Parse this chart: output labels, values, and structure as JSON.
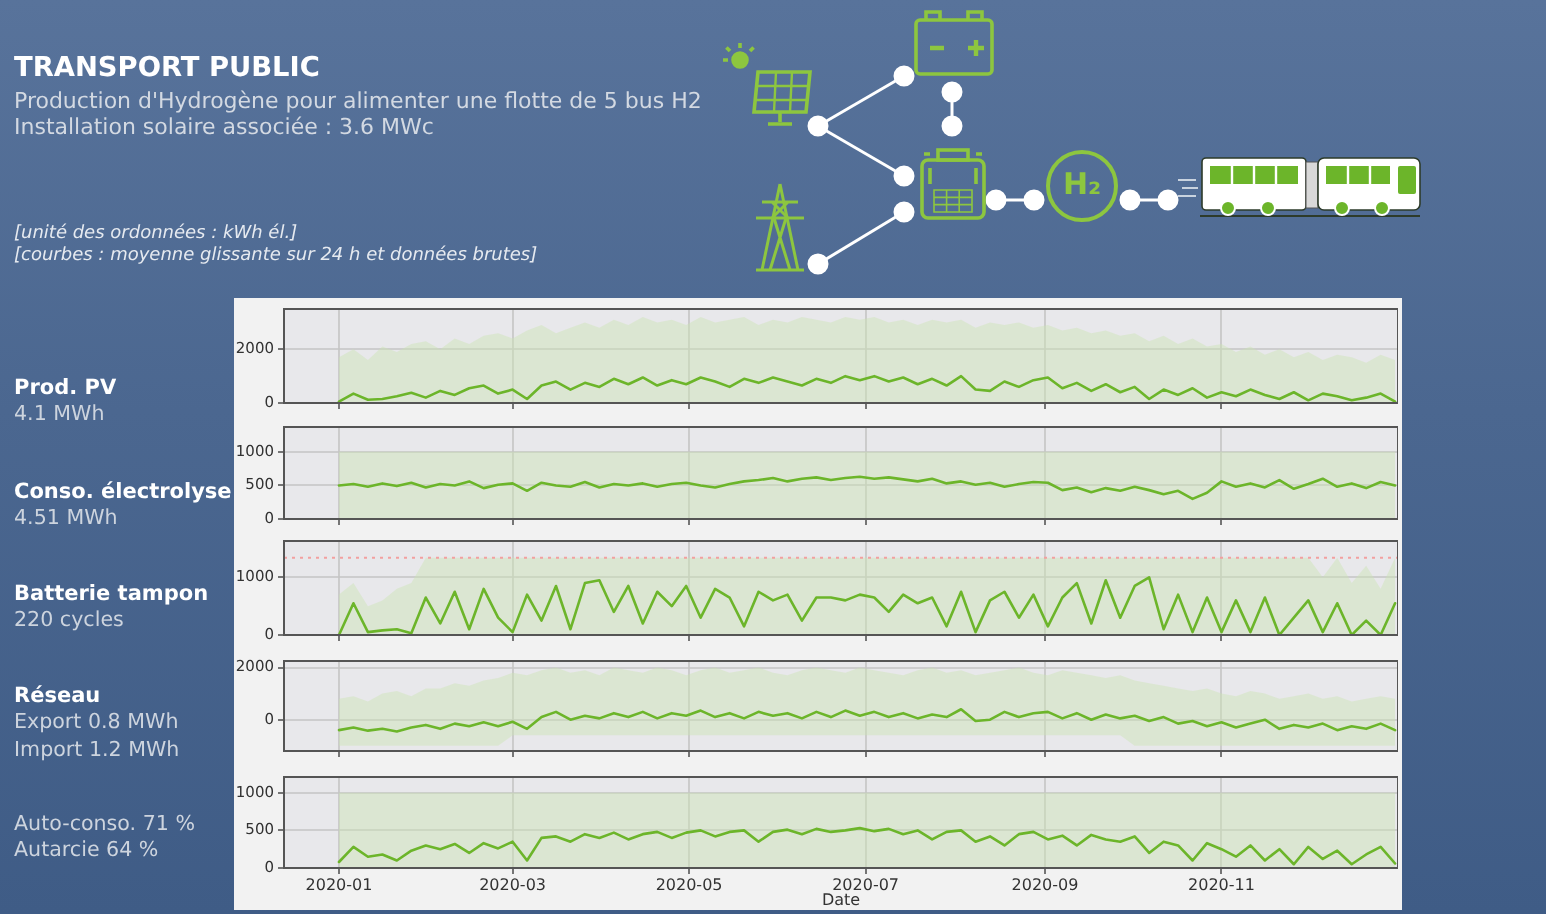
{
  "chart_data": [
    {
      "type": "other",
      "title": "TRANSPORT PUBLIC",
      "subtitle": "Production d'Hydrogène pour alimenter une flotte de 5 bus H2\nInstallation solaire associée : 3.6 MWc",
      "annotations": [
        "H₂",
        "[unité des ordonnées : kWh él.]",
        "[courbes : moyenne glissante sur 24 h et données brutes]"
      ]
    },
    {
      "type": "line",
      "ylabel": "Prod. PV",
      "annotations": [
        "4.1 MWh"
      ],
      "tick_labels": "y",
      "grid": true,
      "xlim": [
        "2019-12-13",
        "2021-01-01"
      ],
      "xticks": [
        "2020-01",
        "2020-03",
        "2020-05",
        "2020-07",
        "2020-09",
        "2020-11"
      ],
      "ylim": [
        0,
        3500
      ],
      "yticks": [
        0,
        2000
      ],
      "x": [
        "2020-01-01",
        "2020-01-06",
        "2020-01-11",
        "2020-01-16",
        "2020-01-21",
        "2020-01-26",
        "2020-01-31",
        "2020-02-05",
        "2020-02-10",
        "2020-02-15",
        "2020-02-20",
        "2020-02-25",
        "2020-03-01",
        "2020-03-06",
        "2020-03-11",
        "2020-03-16",
        "2020-03-21",
        "2020-03-26",
        "2020-03-31",
        "2020-04-05",
        "2020-04-10",
        "2020-04-15",
        "2020-04-20",
        "2020-04-25",
        "2020-04-30",
        "2020-05-05",
        "2020-05-10",
        "2020-05-15",
        "2020-05-20",
        "2020-05-25",
        "2020-05-30",
        "2020-06-04",
        "2020-06-09",
        "2020-06-14",
        "2020-06-19",
        "2020-06-24",
        "2020-06-29",
        "2020-07-04",
        "2020-07-09",
        "2020-07-14",
        "2020-07-19",
        "2020-07-24",
        "2020-07-29",
        "2020-08-03",
        "2020-08-08",
        "2020-08-13",
        "2020-08-18",
        "2020-08-23",
        "2020-08-28",
        "2020-09-02",
        "2020-09-07",
        "2020-09-12",
        "2020-09-17",
        "2020-09-22",
        "2020-09-27",
        "2020-10-02",
        "2020-10-07",
        "2020-10-12",
        "2020-10-17",
        "2020-10-22",
        "2020-10-27",
        "2020-11-01",
        "2020-11-06",
        "2020-11-11",
        "2020-11-16",
        "2020-11-21",
        "2020-11-26",
        "2020-12-01",
        "2020-12-06",
        "2020-12-11",
        "2020-12-16",
        "2020-12-21",
        "2020-12-26",
        "2020-12-31"
      ],
      "series": [
        {
          "color": "#6cb52a",
          "values": [
            50,
            350,
            120,
            150,
            250,
            380,
            200,
            450,
            300,
            550,
            650,
            350,
            500,
            150,
            650,
            800,
            500,
            750,
            600,
            900,
            700,
            950,
            650,
            850,
            700,
            950,
            800,
            600,
            900,
            750,
            950,
            800,
            650,
            900,
            750,
            1000,
            850,
            1000,
            800,
            950,
            700,
            900,
            650,
            1000,
            500,
            450,
            800,
            600,
            850,
            950,
            550,
            750,
            450,
            700,
            400,
            600,
            150,
            500,
            300,
            550,
            200,
            400,
            250,
            500,
            300,
            150,
            400,
            100,
            350,
            250,
            100,
            200,
            350,
            50
          ],
          "lower": [
            0,
            0,
            0,
            0,
            0,
            0,
            0,
            0,
            0,
            0,
            0,
            0,
            0,
            0,
            0,
            0,
            0,
            0,
            0,
            0,
            0,
            0,
            0,
            0,
            0,
            0,
            0,
            0,
            0,
            0,
            0,
            0,
            0,
            0,
            0,
            0,
            0,
            0,
            0,
            0,
            0,
            0,
            0,
            0,
            0,
            0,
            0,
            0,
            0,
            0,
            0,
            0,
            0,
            0,
            0,
            0,
            0,
            0,
            0,
            0,
            0,
            0,
            0,
            0,
            0,
            0,
            0,
            0,
            0,
            0,
            0,
            0,
            0,
            0
          ],
          "upper": [
            1700,
            2000,
            1600,
            2100,
            1900,
            2200,
            2300,
            2000,
            2400,
            2200,
            2500,
            2600,
            2400,
            2700,
            2900,
            2600,
            2800,
            3000,
            2800,
            3100,
            2900,
            3200,
            3000,
            3100,
            2900,
            3200,
            3000,
            3100,
            3200,
            2900,
            3100,
            3000,
            3200,
            3100,
            3000,
            3200,
            3100,
            3200,
            3000,
            3100,
            2900,
            3100,
            3000,
            3100,
            2800,
            3000,
            2900,
            3000,
            2800,
            2900,
            2700,
            2800,
            2600,
            2700,
            2500,
            2600,
            2300,
            2500,
            2200,
            2400,
            2100,
            2200,
            1900,
            2100,
            1800,
            2000,
            1700,
            1900,
            1600,
            1800,
            1700,
            1500,
            1800,
            1600
          ]
        }
      ]
    },
    {
      "type": "line",
      "ylabel": "Conso. électrolyse",
      "annotations": [
        "4.51 MWh"
      ],
      "tick_labels": "y",
      "grid": true,
      "xlim": [
        "2019-12-13",
        "2021-01-01"
      ],
      "xticks": [
        "2020-01",
        "2020-03",
        "2020-05",
        "2020-07",
        "2020-09",
        "2020-11"
      ],
      "ylim": [
        0,
        1370
      ],
      "yticks": [
        0,
        500,
        1000
      ],
      "x": [
        "2020-01-01",
        "2020-01-06",
        "2020-01-11",
        "2020-01-16",
        "2020-01-21",
        "2020-01-26",
        "2020-01-31",
        "2020-02-05",
        "2020-02-10",
        "2020-02-15",
        "2020-02-20",
        "2020-02-25",
        "2020-03-01",
        "2020-03-06",
        "2020-03-11",
        "2020-03-16",
        "2020-03-21",
        "2020-03-26",
        "2020-03-31",
        "2020-04-05",
        "2020-04-10",
        "2020-04-15",
        "2020-04-20",
        "2020-04-25",
        "2020-04-30",
        "2020-05-05",
        "2020-05-10",
        "2020-05-15",
        "2020-05-20",
        "2020-05-25",
        "2020-05-30",
        "2020-06-04",
        "2020-06-09",
        "2020-06-14",
        "2020-06-19",
        "2020-06-24",
        "2020-06-29",
        "2020-07-04",
        "2020-07-09",
        "2020-07-14",
        "2020-07-19",
        "2020-07-24",
        "2020-07-29",
        "2020-08-03",
        "2020-08-08",
        "2020-08-13",
        "2020-08-18",
        "2020-08-23",
        "2020-08-28",
        "2020-09-02",
        "2020-09-07",
        "2020-09-12",
        "2020-09-17",
        "2020-09-22",
        "2020-09-27",
        "2020-10-02",
        "2020-10-07",
        "2020-10-12",
        "2020-10-17",
        "2020-10-22",
        "2020-10-27",
        "2020-11-01",
        "2020-11-06",
        "2020-11-11",
        "2020-11-16",
        "2020-11-21",
        "2020-11-26",
        "2020-12-01",
        "2020-12-06",
        "2020-12-11",
        "2020-12-16",
        "2020-12-21",
        "2020-12-26",
        "2020-12-31"
      ],
      "series": [
        {
          "color": "#6cb52a",
          "values": [
            500,
            520,
            480,
            530,
            490,
            540,
            470,
            520,
            500,
            560,
            460,
            510,
            530,
            420,
            540,
            500,
            480,
            550,
            470,
            520,
            500,
            530,
            480,
            520,
            540,
            500,
            470,
            520,
            560,
            580,
            610,
            560,
            600,
            620,
            580,
            610,
            630,
            600,
            620,
            590,
            560,
            600,
            530,
            560,
            510,
            540,
            480,
            520,
            550,
            540,
            430,
            470,
            400,
            460,
            420,
            480,
            430,
            370,
            420,
            300,
            390,
            560,
            480,
            530,
            470,
            580,
            450,
            520,
            600,
            480,
            530,
            460,
            550,
            500
          ],
          "lower": [
            0,
            0,
            0,
            0,
            0,
            0,
            0,
            0,
            0,
            0,
            0,
            0,
            0,
            0,
            0,
            0,
            0,
            0,
            0,
            0,
            0,
            0,
            0,
            0,
            0,
            0,
            0,
            0,
            0,
            0,
            0,
            0,
            0,
            0,
            0,
            0,
            0,
            0,
            0,
            0,
            0,
            0,
            0,
            0,
            0,
            0,
            0,
            0,
            0,
            0,
            0,
            0,
            0,
            0,
            0,
            0,
            0,
            0,
            0,
            0,
            0,
            0,
            0,
            0,
            0,
            0,
            0,
            0,
            0,
            0,
            0,
            0,
            0,
            0
          ],
          "upper": [
            1000,
            1000,
            1000,
            1000,
            1000,
            1000,
            1000,
            1000,
            1000,
            1000,
            1000,
            1000,
            1000,
            1000,
            1000,
            1000,
            1000,
            1000,
            1000,
            1000,
            1000,
            1000,
            1000,
            1000,
            1000,
            1000,
            1000,
            1000,
            1000,
            1000,
            1000,
            1000,
            1000,
            1000,
            1000,
            1000,
            1000,
            1000,
            1000,
            1000,
            1000,
            1000,
            1000,
            1000,
            1000,
            1000,
            1000,
            1000,
            1000,
            1000,
            1000,
            1000,
            1000,
            1000,
            1000,
            1000,
            1000,
            1000,
            1000,
            1000,
            1000,
            1000,
            1000,
            1000,
            1000,
            1000,
            1000,
            1000,
            1000,
            1000,
            1000,
            1000,
            1000,
            1000
          ]
        }
      ]
    },
    {
      "type": "line",
      "ylabel": "Batterie tampon",
      "annotations": [
        "220 cycles"
      ],
      "tick_labels": "y",
      "grid": true,
      "xlim": [
        "2019-12-13",
        "2021-01-01"
      ],
      "xticks": [
        "2020-01",
        "2020-03",
        "2020-05",
        "2020-07",
        "2020-09",
        "2020-11"
      ],
      "ylim": [
        0,
        1630
      ],
      "yticks": [
        0,
        1000
      ],
      "ref_lines": [
        {
          "axis": "y",
          "value": 1340,
          "color": "#f2a0a0",
          "line_style": "dotted"
        }
      ],
      "x": [
        "2020-01-01",
        "2020-01-06",
        "2020-01-11",
        "2020-01-16",
        "2020-01-21",
        "2020-01-26",
        "2020-01-31",
        "2020-02-05",
        "2020-02-10",
        "2020-02-15",
        "2020-02-20",
        "2020-02-25",
        "2020-03-01",
        "2020-03-06",
        "2020-03-11",
        "2020-03-16",
        "2020-03-21",
        "2020-03-26",
        "2020-03-31",
        "2020-04-05",
        "2020-04-10",
        "2020-04-15",
        "2020-04-20",
        "2020-04-25",
        "2020-04-30",
        "2020-05-05",
        "2020-05-10",
        "2020-05-15",
        "2020-05-20",
        "2020-05-25",
        "2020-05-30",
        "2020-06-04",
        "2020-06-09",
        "2020-06-14",
        "2020-06-19",
        "2020-06-24",
        "2020-06-29",
        "2020-07-04",
        "2020-07-09",
        "2020-07-14",
        "2020-07-19",
        "2020-07-24",
        "2020-07-29",
        "2020-08-03",
        "2020-08-08",
        "2020-08-13",
        "2020-08-18",
        "2020-08-23",
        "2020-08-28",
        "2020-09-02",
        "2020-09-07",
        "2020-09-12",
        "2020-09-17",
        "2020-09-22",
        "2020-09-27",
        "2020-10-02",
        "2020-10-07",
        "2020-10-12",
        "2020-10-17",
        "2020-10-22",
        "2020-10-27",
        "2020-11-01",
        "2020-11-06",
        "2020-11-11",
        "2020-11-16",
        "2020-11-21",
        "2020-11-26",
        "2020-12-01",
        "2020-12-06",
        "2020-12-11",
        "2020-12-16",
        "2020-12-21",
        "2020-12-26",
        "2020-12-31"
      ],
      "series": [
        {
          "color": "#6cb52a",
          "values": [
            0,
            550,
            50,
            80,
            100,
            30,
            650,
            200,
            750,
            100,
            800,
            300,
            50,
            700,
            250,
            850,
            100,
            900,
            950,
            400,
            850,
            200,
            750,
            500,
            850,
            300,
            800,
            650,
            150,
            750,
            600,
            700,
            250,
            650,
            650,
            600,
            700,
            650,
            400,
            700,
            550,
            650,
            150,
            750,
            50,
            600,
            750,
            300,
            700,
            150,
            650,
            900,
            200,
            950,
            300,
            850,
            1000,
            100,
            700,
            50,
            650,
            50,
            600,
            50,
            650,
            0,
            300,
            600,
            50,
            550,
            0,
            250,
            0,
            550
          ],
          "lower": [
            0,
            0,
            0,
            0,
            0,
            0,
            0,
            0,
            0,
            0,
            0,
            0,
            0,
            0,
            0,
            0,
            0,
            0,
            0,
            0,
            0,
            0,
            0,
            0,
            0,
            0,
            0,
            0,
            0,
            0,
            0,
            0,
            0,
            0,
            0,
            0,
            0,
            0,
            0,
            0,
            0,
            0,
            0,
            0,
            0,
            0,
            0,
            0,
            0,
            0,
            0,
            0,
            0,
            0,
            0,
            0,
            0,
            0,
            0,
            0,
            0,
            0,
            0,
            0,
            0,
            0,
            0,
            0,
            0,
            0,
            0,
            0,
            0,
            0
          ],
          "upper": [
            700,
            900,
            500,
            600,
            800,
            900,
            1340,
            1340,
            1340,
            1340,
            1340,
            1340,
            1340,
            1340,
            1340,
            1340,
            1340,
            1340,
            1340,
            1340,
            1340,
            1340,
            1340,
            1340,
            1340,
            1340,
            1340,
            1340,
            1340,
            1340,
            1340,
            1340,
            1340,
            1340,
            1340,
            1340,
            1340,
            1340,
            1340,
            1340,
            1340,
            1340,
            1340,
            1340,
            1340,
            1340,
            1340,
            1340,
            1340,
            1340,
            1340,
            1340,
            1340,
            1340,
            1340,
            1340,
            1340,
            1340,
            1340,
            1340,
            1340,
            1340,
            1340,
            1340,
            1340,
            1340,
            1340,
            1340,
            1000,
            1340,
            900,
            1200,
            800,
            1340
          ]
        }
      ]
    },
    {
      "type": "line",
      "ylabel": "Réseau",
      "annotations": [
        "Export 0.8 MWh",
        "Import 1.2 MWh"
      ],
      "tick_labels": "y",
      "grid": true,
      "xlim": [
        "2019-12-13",
        "2021-01-01"
      ],
      "xticks": [
        "2020-01",
        "2020-03",
        "2020-05",
        "2020-07",
        "2020-09",
        "2020-11"
      ],
      "ylim": [
        -1200,
        2250
      ],
      "yticks": [
        0,
        2000
      ],
      "x": [
        "2020-01-01",
        "2020-01-06",
        "2020-01-11",
        "2020-01-16",
        "2020-01-21",
        "2020-01-26",
        "2020-01-31",
        "2020-02-05",
        "2020-02-10",
        "2020-02-15",
        "2020-02-20",
        "2020-02-25",
        "2020-03-01",
        "2020-03-06",
        "2020-03-11",
        "2020-03-16",
        "2020-03-21",
        "2020-03-26",
        "2020-03-31",
        "2020-04-05",
        "2020-04-10",
        "2020-04-15",
        "2020-04-20",
        "2020-04-25",
        "2020-04-30",
        "2020-05-05",
        "2020-05-10",
        "2020-05-15",
        "2020-05-20",
        "2020-05-25",
        "2020-05-30",
        "2020-06-04",
        "2020-06-09",
        "2020-06-14",
        "2020-06-19",
        "2020-06-24",
        "2020-06-29",
        "2020-07-04",
        "2020-07-09",
        "2020-07-14",
        "2020-07-19",
        "2020-07-24",
        "2020-07-29",
        "2020-08-03",
        "2020-08-08",
        "2020-08-13",
        "2020-08-18",
        "2020-08-23",
        "2020-08-28",
        "2020-09-02",
        "2020-09-07",
        "2020-09-12",
        "2020-09-17",
        "2020-09-22",
        "2020-09-27",
        "2020-10-02",
        "2020-10-07",
        "2020-10-12",
        "2020-10-17",
        "2020-10-22",
        "2020-10-27",
        "2020-11-01",
        "2020-11-06",
        "2020-11-11",
        "2020-11-16",
        "2020-11-21",
        "2020-11-26",
        "2020-12-01",
        "2020-12-06",
        "2020-12-11",
        "2020-12-16",
        "2020-12-21",
        "2020-12-26",
        "2020-12-31"
      ],
      "series": [
        {
          "color": "#6cb52a",
          "values": [
            -400,
            -300,
            -420,
            -350,
            -450,
            -300,
            -200,
            -350,
            -150,
            -250,
            -100,
            -250,
            -80,
            -350,
            100,
            300,
            0,
            150,
            50,
            250,
            100,
            300,
            50,
            250,
            150,
            350,
            100,
            250,
            50,
            300,
            150,
            250,
            50,
            300,
            100,
            350,
            150,
            300,
            100,
            250,
            50,
            200,
            100,
            400,
            -50,
            0,
            300,
            100,
            250,
            300,
            50,
            250,
            0,
            200,
            50,
            150,
            -50,
            100,
            -150,
            -50,
            -250,
            -100,
            -300,
            -150,
            0,
            -350,
            -200,
            -300,
            -150,
            -400,
            -250,
            -350,
            -150,
            -400
          ],
          "lower": [
            -1000,
            -1000,
            -1000,
            -1000,
            -1000,
            -1000,
            -1000,
            -1000,
            -1000,
            -1000,
            -1000,
            -1000,
            -600,
            -600,
            -600,
            -600,
            -600,
            -600,
            -600,
            -600,
            -600,
            -600,
            -600,
            -600,
            -600,
            -600,
            -600,
            -600,
            -600,
            -600,
            -600,
            -600,
            -600,
            -600,
            -600,
            -600,
            -600,
            -600,
            -600,
            -600,
            -600,
            -600,
            -600,
            -600,
            -600,
            -600,
            -600,
            -600,
            -600,
            -600,
            -600,
            -600,
            -600,
            -600,
            -600,
            -1000,
            -1000,
            -1000,
            -1000,
            -1000,
            -1000,
            -1000,
            -1000,
            -1000,
            -1000,
            -1000,
            -1000,
            -1000,
            -1000,
            -1000,
            -1000,
            -1000,
            -1000,
            -1000
          ],
          "upper": [
            800,
            900,
            700,
            1000,
            1100,
            900,
            1200,
            1200,
            1400,
            1300,
            1500,
            1600,
            1800,
            1700,
            1900,
            2000,
            1800,
            1900,
            1700,
            2000,
            1900,
            1800,
            2000,
            1900,
            1700,
            1900,
            2000,
            1800,
            1900,
            2000,
            1800,
            1700,
            1900,
            2000,
            1900,
            1800,
            2000,
            1900,
            1800,
            1700,
            1900,
            2000,
            1800,
            1900,
            1700,
            1800,
            1900,
            2000,
            1800,
            1700,
            1900,
            1800,
            1700,
            1600,
            1700,
            1500,
            1400,
            1300,
            1200,
            1100,
            1200,
            1000,
            900,
            1100,
            1000,
            800,
            900,
            1000,
            800,
            900,
            700,
            800,
            900,
            800
          ]
        }
      ]
    },
    {
      "type": "line",
      "annotations": [
        "Auto-conso. 71 %",
        "Autarcie 64 %"
      ],
      "xlabel": "Date",
      "grid": true,
      "xlim": [
        "2019-12-13",
        "2021-01-01"
      ],
      "xticks": [
        "2020-01",
        "2020-03",
        "2020-05",
        "2020-07",
        "2020-09",
        "2020-11"
      ],
      "ylim": [
        0,
        1210
      ],
      "yticks": [
        0,
        500,
        1000
      ],
      "x": [
        "2020-01-01",
        "2020-01-06",
        "2020-01-11",
        "2020-01-16",
        "2020-01-21",
        "2020-01-26",
        "2020-01-31",
        "2020-02-05",
        "2020-02-10",
        "2020-02-15",
        "2020-02-20",
        "2020-02-25",
        "2020-03-01",
        "2020-03-06",
        "2020-03-11",
        "2020-03-16",
        "2020-03-21",
        "2020-03-26",
        "2020-03-31",
        "2020-04-05",
        "2020-04-10",
        "2020-04-15",
        "2020-04-20",
        "2020-04-25",
        "2020-04-30",
        "2020-05-05",
        "2020-05-10",
        "2020-05-15",
        "2020-05-20",
        "2020-05-25",
        "2020-05-30",
        "2020-06-04",
        "2020-06-09",
        "2020-06-14",
        "2020-06-19",
        "2020-06-24",
        "2020-06-29",
        "2020-07-04",
        "2020-07-09",
        "2020-07-14",
        "2020-07-19",
        "2020-07-24",
        "2020-07-29",
        "2020-08-03",
        "2020-08-08",
        "2020-08-13",
        "2020-08-18",
        "2020-08-23",
        "2020-08-28",
        "2020-09-02",
        "2020-09-07",
        "2020-09-12",
        "2020-09-17",
        "2020-09-22",
        "2020-09-27",
        "2020-10-02",
        "2020-10-07",
        "2020-10-12",
        "2020-10-17",
        "2020-10-22",
        "2020-10-27",
        "2020-11-01",
        "2020-11-06",
        "2020-11-11",
        "2020-11-16",
        "2020-11-21",
        "2020-11-26",
        "2020-12-01",
        "2020-12-06",
        "2020-12-11",
        "2020-12-16",
        "2020-12-21",
        "2020-12-26",
        "2020-12-31"
      ],
      "series": [
        {
          "color": "#6cb52a",
          "values": [
            80,
            280,
            150,
            180,
            100,
            230,
            300,
            250,
            320,
            200,
            330,
            260,
            350,
            100,
            400,
            420,
            350,
            450,
            400,
            470,
            380,
            450,
            480,
            400,
            470,
            500,
            420,
            480,
            500,
            350,
            480,
            510,
            450,
            520,
            480,
            500,
            530,
            490,
            520,
            450,
            500,
            380,
            480,
            500,
            350,
            420,
            300,
            450,
            480,
            380,
            430,
            300,
            440,
            380,
            350,
            420,
            200,
            350,
            300,
            100,
            330,
            250,
            150,
            300,
            100,
            250,
            50,
            280,
            120,
            230,
            50,
            180,
            280,
            60
          ],
          "lower": [
            0,
            0,
            0,
            0,
            0,
            0,
            0,
            0,
            0,
            0,
            0,
            0,
            0,
            0,
            0,
            0,
            0,
            0,
            0,
            0,
            0,
            0,
            0,
            0,
            0,
            0,
            0,
            0,
            0,
            0,
            0,
            0,
            0,
            0,
            0,
            0,
            0,
            0,
            0,
            0,
            0,
            0,
            0,
            0,
            0,
            0,
            0,
            0,
            0,
            0,
            0,
            0,
            0,
            0,
            0,
            0,
            0,
            0,
            0,
            0,
            0,
            0,
            0,
            0,
            0,
            0,
            0,
            0,
            0,
            0,
            0,
            0,
            0,
            0
          ],
          "upper": [
            1000,
            1000,
            1000,
            1000,
            1000,
            1000,
            1000,
            1000,
            1000,
            1000,
            1000,
            1000,
            1000,
            1000,
            1000,
            1000,
            1000,
            1000,
            1000,
            1000,
            1000,
            1000,
            1000,
            1000,
            1000,
            1000,
            1000,
            1000,
            1000,
            1000,
            1000,
            1000,
            1000,
            1000,
            1000,
            1000,
            1000,
            1000,
            1000,
            1000,
            1000,
            1000,
            1000,
            1000,
            1000,
            1000,
            1000,
            1000,
            1000,
            1000,
            1000,
            1000,
            1000,
            1000,
            1000,
            1000,
            1000,
            1000,
            1000,
            1000,
            1000,
            1000,
            1000,
            1000,
            1000,
            1000,
            1000,
            1000,
            1000,
            1000,
            1000,
            1000,
            1000,
            1000
          ]
        }
      ]
    }
  ]
}
